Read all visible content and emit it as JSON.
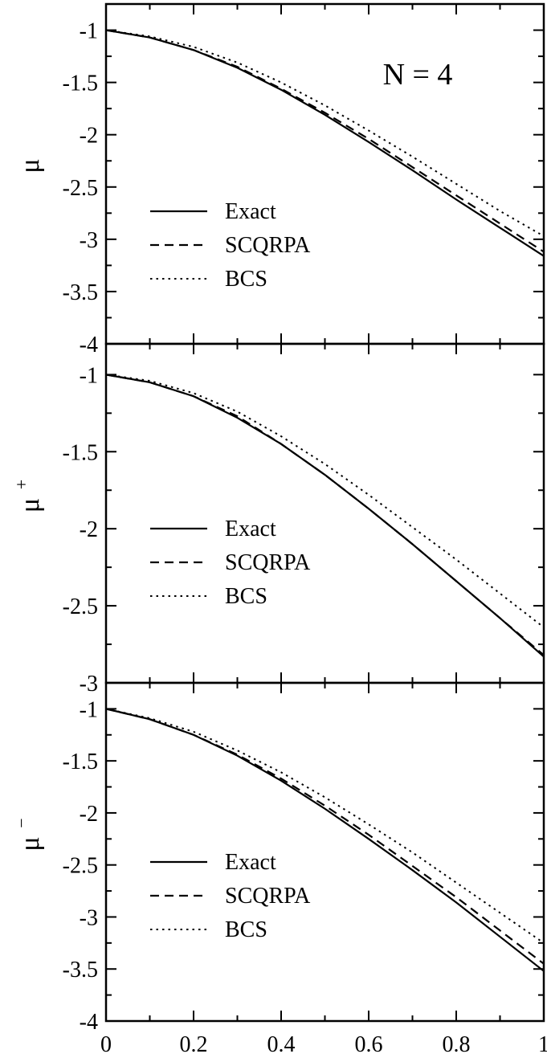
{
  "chart_data": [
    {
      "type": "line",
      "panel": "top",
      "ylabel": "μ",
      "ylabel_sup": "",
      "annotation": "N = 4",
      "xlim": [
        0,
        1
      ],
      "ylim": [
        -4,
        -0.75
      ],
      "xticks": [
        0,
        0.2,
        0.4,
        0.6,
        0.8,
        1
      ],
      "yticks": [
        -4,
        -3.5,
        -3,
        -2.5,
        -2,
        -1.5,
        -1
      ],
      "ytick_labels": [
        "-4",
        "-3.5",
        "-3",
        "-2.5",
        "-2",
        "-1.5",
        "-1"
      ],
      "legend": [
        {
          "label": "Exact",
          "style": "solid"
        },
        {
          "label": "SCQRPA",
          "style": "dashed"
        },
        {
          "label": "BCS",
          "style": "dotted"
        }
      ],
      "series": [
        {
          "name": "Exact",
          "style": "solid",
          "x": [
            0,
            0.1,
            0.2,
            0.3,
            0.4,
            0.5,
            0.6,
            0.7,
            0.8,
            0.9,
            1.0
          ],
          "y": [
            -1.0,
            -1.07,
            -1.19,
            -1.36,
            -1.57,
            -1.81,
            -2.07,
            -2.34,
            -2.62,
            -2.89,
            -3.16
          ]
        },
        {
          "name": "SCQRPA",
          "style": "dashed",
          "x": [
            0,
            0.1,
            0.2,
            0.3,
            0.4,
            0.5,
            0.6,
            0.7,
            0.8,
            0.9,
            1.0
          ],
          "y": [
            -1.0,
            -1.07,
            -1.19,
            -1.35,
            -1.56,
            -1.79,
            -2.04,
            -2.31,
            -2.58,
            -2.85,
            -3.12
          ]
        },
        {
          "name": "BCS",
          "style": "dotted",
          "x": [
            0,
            0.1,
            0.2,
            0.3,
            0.4,
            0.5,
            0.6,
            0.7,
            0.8,
            0.9,
            1.0
          ],
          "y": [
            -1.0,
            -1.06,
            -1.16,
            -1.31,
            -1.5,
            -1.72,
            -1.96,
            -2.21,
            -2.47,
            -2.73,
            -2.97
          ]
        }
      ]
    },
    {
      "type": "line",
      "panel": "middle",
      "ylabel": "μ",
      "ylabel_sup": "+",
      "annotation": "",
      "xlim": [
        0,
        1
      ],
      "ylim": [
        -3,
        -0.8
      ],
      "xticks": [
        0,
        0.2,
        0.4,
        0.6,
        0.8,
        1
      ],
      "yticks": [
        -3,
        -2.5,
        -2,
        -1.5,
        -1
      ],
      "ytick_labels": [
        "-3",
        "-2.5",
        "-2",
        "-1.5",
        "-1"
      ],
      "legend": [
        {
          "label": "Exact",
          "style": "solid"
        },
        {
          "label": "SCQRPA",
          "style": "dashed"
        },
        {
          "label": "BCS",
          "style": "dotted"
        }
      ],
      "series": [
        {
          "name": "Exact",
          "style": "solid",
          "x": [
            0,
            0.1,
            0.2,
            0.3,
            0.4,
            0.5,
            0.6,
            0.7,
            0.8,
            0.9,
            1.0
          ],
          "y": [
            -1.0,
            -1.05,
            -1.14,
            -1.28,
            -1.45,
            -1.65,
            -1.87,
            -2.1,
            -2.34,
            -2.58,
            -2.83
          ]
        },
        {
          "name": "SCQRPA",
          "style": "dashed",
          "x": [
            0,
            0.1,
            0.2,
            0.3,
            0.4,
            0.5,
            0.6,
            0.7,
            0.8,
            0.9,
            1.0
          ],
          "y": [
            -1.0,
            -1.05,
            -1.14,
            -1.27,
            -1.45,
            -1.65,
            -1.87,
            -2.1,
            -2.34,
            -2.58,
            -2.82
          ]
        },
        {
          "name": "BCS",
          "style": "dotted",
          "x": [
            0,
            0.1,
            0.2,
            0.3,
            0.4,
            0.5,
            0.6,
            0.7,
            0.8,
            0.9,
            1.0
          ],
          "y": [
            -1.0,
            -1.04,
            -1.12,
            -1.24,
            -1.4,
            -1.58,
            -1.78,
            -1.99,
            -2.2,
            -2.42,
            -2.64
          ]
        }
      ]
    },
    {
      "type": "line",
      "panel": "bottom",
      "ylabel": "μ",
      "ylabel_sup": "−",
      "annotation": "",
      "xlim": [
        0,
        1
      ],
      "ylim": [
        -4,
        -0.75
      ],
      "xticks": [
        0,
        0.2,
        0.4,
        0.6,
        0.8,
        1
      ],
      "xtick_labels": [
        "0",
        "0.2",
        "0.4",
        "0.6",
        "0.8",
        "1"
      ],
      "yticks": [
        -4,
        -3.5,
        -3,
        -2.5,
        -2,
        -1.5,
        -1
      ],
      "ytick_labels": [
        "-4",
        "-3.5",
        "-3",
        "-2.5",
        "-2",
        "-1.5",
        "-1"
      ],
      "legend": [
        {
          "label": "Exact",
          "style": "solid"
        },
        {
          "label": "SCQRPA",
          "style": "dashed"
        },
        {
          "label": "BCS",
          "style": "dotted"
        }
      ],
      "series": [
        {
          "name": "Exact",
          "style": "solid",
          "x": [
            0,
            0.1,
            0.2,
            0.3,
            0.4,
            0.5,
            0.6,
            0.7,
            0.8,
            0.9,
            1.0
          ],
          "y": [
            -1.0,
            -1.1,
            -1.25,
            -1.45,
            -1.69,
            -1.96,
            -2.25,
            -2.55,
            -2.86,
            -3.19,
            -3.52
          ]
        },
        {
          "name": "SCQRPA",
          "style": "dashed",
          "x": [
            0,
            0.1,
            0.2,
            0.3,
            0.4,
            0.5,
            0.6,
            0.7,
            0.8,
            0.9,
            1.0
          ],
          "y": [
            -1.0,
            -1.1,
            -1.25,
            -1.44,
            -1.67,
            -1.93,
            -2.21,
            -2.51,
            -2.81,
            -3.13,
            -3.45
          ]
        },
        {
          "name": "BCS",
          "style": "dotted",
          "x": [
            0,
            0.1,
            0.2,
            0.3,
            0.4,
            0.5,
            0.6,
            0.7,
            0.8,
            0.9,
            1.0
          ],
          "y": [
            -1.0,
            -1.09,
            -1.22,
            -1.4,
            -1.61,
            -1.85,
            -2.11,
            -2.38,
            -2.67,
            -2.96,
            -3.25
          ]
        }
      ]
    }
  ]
}
